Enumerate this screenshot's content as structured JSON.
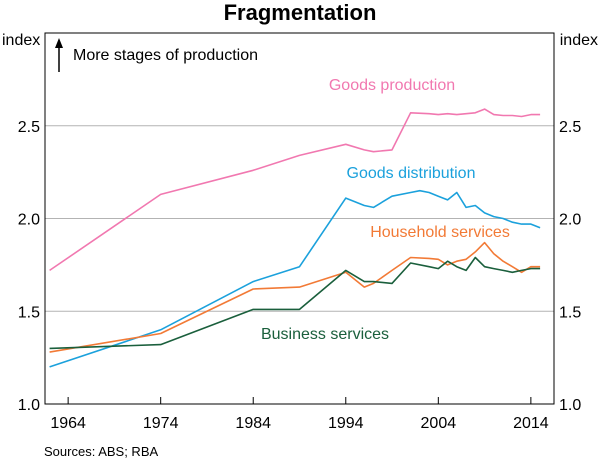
{
  "chart_data": {
    "type": "line",
    "title": "Fragmentation",
    "y_unit_left": "index",
    "y_unit_right": "index",
    "annotation": "More stages of production",
    "source": "Sources: ABS; RBA",
    "xlim": [
      1961.5,
      2016.5
    ],
    "ylim": [
      1.0,
      3.0
    ],
    "y_ticks": [
      1.0,
      1.5,
      2.0,
      2.5
    ],
    "y_tick_labels": [
      "1.0",
      "1.5",
      "2.0",
      "2.5"
    ],
    "x_ticks": [
      1964,
      1974,
      1984,
      1994,
      2004,
      2014
    ],
    "x_tick_labels": [
      "1964",
      "1974",
      "1984",
      "1994",
      "2004",
      "2014"
    ],
    "series": [
      {
        "name": "Goods production",
        "color": "#f178b0",
        "x": [
          1962,
          1974,
          1984,
          1989,
          1994,
          1996,
          1997,
          1999,
          2001,
          2003,
          2004,
          2005,
          2006,
          2007,
          2008,
          2009,
          2010,
          2011,
          2012,
          2013,
          2014,
          2015
        ],
        "values": [
          1.72,
          2.13,
          2.26,
          2.34,
          2.4,
          2.37,
          2.36,
          2.37,
          2.57,
          2.565,
          2.56,
          2.565,
          2.56,
          2.565,
          2.57,
          2.59,
          2.56,
          2.555,
          2.555,
          2.55,
          2.56,
          2.56
        ]
      },
      {
        "name": "Goods distribution",
        "color": "#1ba1dc",
        "x": [
          1962,
          1974,
          1984,
          1989,
          1994,
          1996,
          1997,
          1999,
          2001,
          2002,
          2003,
          2004,
          2005,
          2006,
          2007,
          2008,
          2009,
          2010,
          2011,
          2012,
          2013,
          2014,
          2015
        ],
        "values": [
          1.2,
          1.4,
          1.66,
          1.74,
          2.11,
          2.07,
          2.06,
          2.12,
          2.14,
          2.15,
          2.14,
          2.12,
          2.1,
          2.14,
          2.06,
          2.07,
          2.03,
          2.01,
          2.0,
          1.98,
          1.97,
          1.97,
          1.95
        ]
      },
      {
        "name": "Household services",
        "color": "#f27a36",
        "x": [
          1962,
          1974,
          1984,
          1989,
          1994,
          1996,
          1997,
          1999,
          2001,
          2003,
          2004,
          2005,
          2006,
          2007,
          2008,
          2009,
          2010,
          2011,
          2012,
          2013,
          2014,
          2015
        ],
        "values": [
          1.28,
          1.38,
          1.62,
          1.63,
          1.71,
          1.63,
          1.65,
          1.72,
          1.79,
          1.785,
          1.78,
          1.75,
          1.77,
          1.78,
          1.82,
          1.87,
          1.81,
          1.77,
          1.74,
          1.71,
          1.74,
          1.74
        ]
      },
      {
        "name": "Business services",
        "color": "#1a5f3c",
        "x": [
          1962,
          1974,
          1984,
          1989,
          1994,
          1996,
          1997,
          1999,
          2001,
          2003,
          2004,
          2005,
          2006,
          2007,
          2008,
          2009,
          2010,
          2011,
          2012,
          2013,
          2014,
          2015
        ],
        "values": [
          1.3,
          1.32,
          1.51,
          1.51,
          1.72,
          1.66,
          1.66,
          1.65,
          1.76,
          1.74,
          1.73,
          1.77,
          1.74,
          1.72,
          1.79,
          1.74,
          1.73,
          1.72,
          1.71,
          1.72,
          1.73,
          1.73
        ]
      }
    ]
  }
}
